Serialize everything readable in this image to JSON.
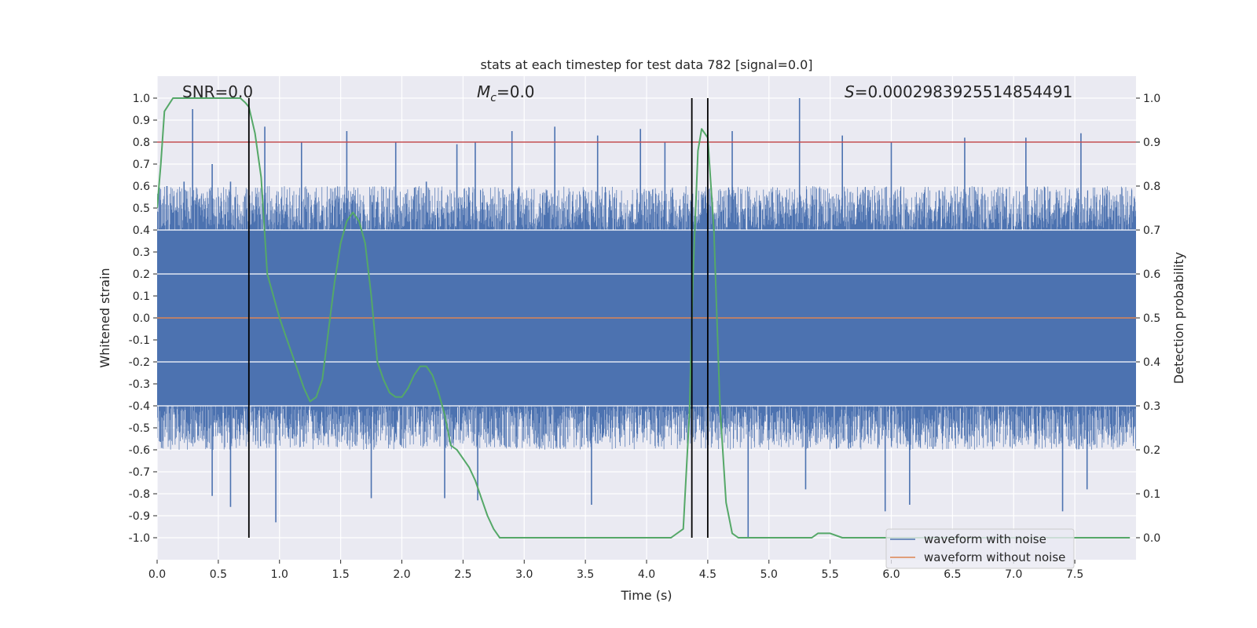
{
  "chart_data": {
    "type": "line",
    "title": "stats at each timestep for test data 782 [signal=0.0]",
    "xlabel": "Time (s)",
    "ylabel_left": "Whitened strain",
    "ylabel_right": "Detection probability",
    "xlim": [
      0.0,
      8.0
    ],
    "ylim_left": [
      -1.1,
      1.1
    ],
    "ylim_right": [
      -0.05,
      1.05
    ],
    "x_ticks": [
      "0.0",
      "0.5",
      "1.0",
      "1.5",
      "2.0",
      "2.5",
      "3.0",
      "3.5",
      "4.0",
      "4.5",
      "5.0",
      "5.5",
      "6.0",
      "6.5",
      "7.0",
      "7.5"
    ],
    "y_ticks_left": [
      "1.0",
      "0.9",
      "0.8",
      "0.7",
      "0.6",
      "0.5",
      "0.4",
      "0.3",
      "0.2",
      "0.1",
      "0.0",
      "-0.1",
      "-0.2",
      "-0.3",
      "-0.4",
      "-0.5",
      "-0.6",
      "-0.7",
      "-0.8",
      "-0.9",
      "-1.0"
    ],
    "y_ticks_right": [
      "1.0",
      "0.9",
      "0.8",
      "0.7",
      "0.6",
      "0.5",
      "0.4",
      "0.3",
      "0.2",
      "0.1",
      "0.0"
    ],
    "grid": true,
    "legend_position": "bottom-right",
    "annotations": {
      "snr": "SNR=0.0",
      "mc_symbol": "M",
      "mc_sub": "c",
      "mc_value": "=0.0",
      "s_symbol": "S",
      "s_value": "=0.0002983925514854491"
    },
    "threshold": 0.8,
    "vertical_markers": [
      0.75,
      4.37,
      4.5
    ],
    "series": [
      {
        "name": "waveform with noise",
        "color": "#4c72b0",
        "axis": "left",
        "description_band": [
          -0.4,
          0.4
        ],
        "extreme_spikes": [
          {
            "x": 0.08,
            "y": 0.6
          },
          {
            "x": 0.22,
            "y": 0.62
          },
          {
            "x": 0.29,
            "y": 0.95
          },
          {
            "x": 0.45,
            "y": 0.7
          },
          {
            "x": 0.6,
            "y": 0.62
          },
          {
            "x": 0.88,
            "y": 0.87
          },
          {
            "x": 1.18,
            "y": 0.8
          },
          {
            "x": 1.55,
            "y": 0.85
          },
          {
            "x": 1.95,
            "y": 0.8
          },
          {
            "x": 2.2,
            "y": 0.62
          },
          {
            "x": 2.45,
            "y": 0.79
          },
          {
            "x": 2.6,
            "y": 0.8
          },
          {
            "x": 2.9,
            "y": 0.85
          },
          {
            "x": 3.25,
            "y": 0.87
          },
          {
            "x": 3.6,
            "y": 0.83
          },
          {
            "x": 3.95,
            "y": 0.86
          },
          {
            "x": 4.15,
            "y": 0.8
          },
          {
            "x": 4.7,
            "y": 0.85
          },
          {
            "x": 5.25,
            "y": 1.0
          },
          {
            "x": 5.6,
            "y": 0.83
          },
          {
            "x": 6.0,
            "y": 0.8
          },
          {
            "x": 6.6,
            "y": 0.82
          },
          {
            "x": 7.1,
            "y": 0.82
          },
          {
            "x": 7.55,
            "y": 0.84
          },
          {
            "x": 0.45,
            "y": -0.81
          },
          {
            "x": 0.6,
            "y": -0.86
          },
          {
            "x": 0.97,
            "y": -0.93
          },
          {
            "x": 1.75,
            "y": -0.82
          },
          {
            "x": 2.35,
            "y": -0.82
          },
          {
            "x": 2.62,
            "y": -0.83
          },
          {
            "x": 3.55,
            "y": -0.85
          },
          {
            "x": 4.83,
            "y": -1.0
          },
          {
            "x": 5.3,
            "y": -0.78
          },
          {
            "x": 5.95,
            "y": -0.88
          },
          {
            "x": 6.15,
            "y": -0.85
          },
          {
            "x": 7.4,
            "y": -0.88
          },
          {
            "x": 7.6,
            "y": -0.78
          }
        ]
      },
      {
        "name": "waveform without noise",
        "color": "#dd8452",
        "axis": "left",
        "x": [
          0.0,
          8.0
        ],
        "y": [
          0.0,
          0.0
        ]
      },
      {
        "name": "",
        "color": "#55a868",
        "axis": "right",
        "x": [
          0.0,
          0.03,
          0.06,
          0.13,
          0.2,
          0.3,
          0.4,
          0.5,
          0.6,
          0.68,
          0.72,
          0.75,
          0.8,
          0.85,
          0.9,
          0.95,
          1.0,
          1.05,
          1.1,
          1.15,
          1.2,
          1.25,
          1.3,
          1.35,
          1.4,
          1.45,
          1.5,
          1.55,
          1.6,
          1.65,
          1.7,
          1.75,
          1.8,
          1.85,
          1.9,
          1.95,
          2.0,
          2.05,
          2.1,
          2.15,
          2.2,
          2.25,
          2.3,
          2.35,
          2.4,
          2.45,
          2.5,
          2.55,
          2.6,
          2.65,
          2.7,
          2.75,
          2.8,
          2.9,
          3.0,
          3.5,
          4.0,
          4.1,
          4.2,
          4.3,
          4.35,
          4.38,
          4.42,
          4.45,
          4.5,
          4.55,
          4.6,
          4.65,
          4.7,
          4.75,
          4.8,
          5.0,
          5.2,
          5.3,
          5.35,
          5.4,
          5.45,
          5.5,
          5.6,
          5.8,
          6.0,
          7.0,
          7.95
        ],
        "y": [
          0.75,
          0.85,
          0.97,
          1.0,
          1.0,
          1.0,
          1.0,
          1.0,
          1.0,
          1.0,
          0.99,
          0.98,
          0.92,
          0.82,
          0.6,
          0.55,
          0.5,
          0.46,
          0.42,
          0.38,
          0.34,
          0.31,
          0.32,
          0.36,
          0.47,
          0.58,
          0.67,
          0.72,
          0.74,
          0.72,
          0.67,
          0.55,
          0.4,
          0.36,
          0.33,
          0.32,
          0.32,
          0.34,
          0.37,
          0.39,
          0.39,
          0.37,
          0.33,
          0.28,
          0.21,
          0.2,
          0.18,
          0.16,
          0.13,
          0.09,
          0.05,
          0.02,
          0.0,
          0.0,
          0.0,
          0.0,
          0.0,
          0.0,
          0.0,
          0.02,
          0.28,
          0.6,
          0.88,
          0.93,
          0.91,
          0.7,
          0.3,
          0.08,
          0.01,
          0.0,
          0.0,
          0.0,
          0.0,
          0.0,
          0.0,
          0.01,
          0.01,
          0.01,
          0.0,
          0.0,
          0.0,
          0.0,
          0.0
        ]
      }
    ]
  }
}
